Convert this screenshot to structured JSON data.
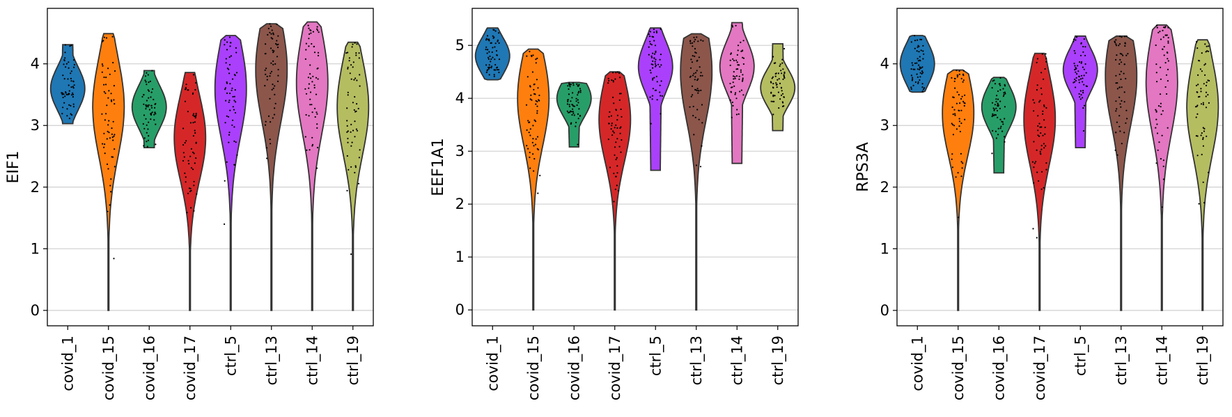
{
  "chart_data": [
    {
      "type": "violin",
      "ylabel": "EIF1",
      "ylim": [
        -0.25,
        4.9
      ],
      "yticks": [
        "0",
        "1",
        "2",
        "3",
        "4"
      ],
      "categories": [
        "covid_1",
        "covid_15",
        "covid_16",
        "covid_17",
        "ctrl_5",
        "ctrl_13",
        "ctrl_14",
        "ctrl_19"
      ],
      "colors": [
        "#1f77b4",
        "#ff7f0e",
        "#279e68",
        "#d62728",
        "#aa40fc",
        "#8c564b",
        "#e377c2",
        "#b5bd61"
      ],
      "violins": [
        {
          "min": 3.03,
          "max": 4.31,
          "median": 3.6
        },
        {
          "min": 0.0,
          "max": 4.49,
          "median": 3.3
        },
        {
          "min": 2.64,
          "max": 3.89,
          "median": 3.3
        },
        {
          "min": 0.0,
          "max": 3.86,
          "median": 2.8
        },
        {
          "min": 0.0,
          "max": 4.46,
          "median": 3.6
        },
        {
          "min": 0.0,
          "max": 4.65,
          "median": 3.9
        },
        {
          "min": 0.0,
          "max": 4.68,
          "median": 3.7
        },
        {
          "min": 0.0,
          "max": 4.35,
          "median": 3.3
        }
      ]
    },
    {
      "type": "violin",
      "ylabel": "EEF1A1",
      "ylim": [
        -0.3,
        5.7
      ],
      "yticks": [
        "0",
        "1",
        "2",
        "3",
        "4",
        "5"
      ],
      "categories": [
        "covid_1",
        "covid_15",
        "covid_16",
        "covid_17",
        "ctrl_5",
        "ctrl_13",
        "ctrl_14",
        "ctrl_19"
      ],
      "colors": [
        "#1f77b4",
        "#ff7f0e",
        "#279e68",
        "#d62728",
        "#aa40fc",
        "#8c564b",
        "#e377c2",
        "#b5bd61"
      ],
      "violins": [
        {
          "min": 4.35,
          "max": 5.33,
          "median": 4.8
        },
        {
          "min": 0.0,
          "max": 4.93,
          "median": 4.0
        },
        {
          "min": 3.08,
          "max": 4.3,
          "median": 4.0
        },
        {
          "min": 0.0,
          "max": 4.5,
          "median": 3.6
        },
        {
          "min": 2.64,
          "max": 5.33,
          "median": 4.6
        },
        {
          "min": 0.0,
          "max": 5.22,
          "median": 4.5
        },
        {
          "min": 2.77,
          "max": 5.43,
          "median": 4.6
        },
        {
          "min": 3.39,
          "max": 5.03,
          "median": 4.2
        }
      ]
    },
    {
      "type": "violin",
      "ylabel": "RPS3A",
      "ylim": [
        -0.25,
        4.9
      ],
      "yticks": [
        "0",
        "1",
        "2",
        "3",
        "4"
      ],
      "categories": [
        "covid_1",
        "covid_15",
        "covid_16",
        "covid_17",
        "ctrl_5",
        "ctrl_13",
        "ctrl_14",
        "ctrl_19"
      ],
      "colors": [
        "#1f77b4",
        "#ff7f0e",
        "#279e68",
        "#d62728",
        "#aa40fc",
        "#8c564b",
        "#e377c2",
        "#b5bd61"
      ],
      "violins": [
        {
          "min": 3.54,
          "max": 4.46,
          "median": 4.0
        },
        {
          "min": 0.0,
          "max": 3.9,
          "median": 3.2
        },
        {
          "min": 2.23,
          "max": 3.78,
          "median": 3.3
        },
        {
          "min": 0.0,
          "max": 4.17,
          "median": 3.1
        },
        {
          "min": 2.64,
          "max": 4.45,
          "median": 3.9
        },
        {
          "min": 0.0,
          "max": 4.45,
          "median": 3.8
        },
        {
          "min": 0.0,
          "max": 4.63,
          "median": 3.7
        },
        {
          "min": 0.0,
          "max": 4.39,
          "median": 3.3
        }
      ]
    }
  ]
}
